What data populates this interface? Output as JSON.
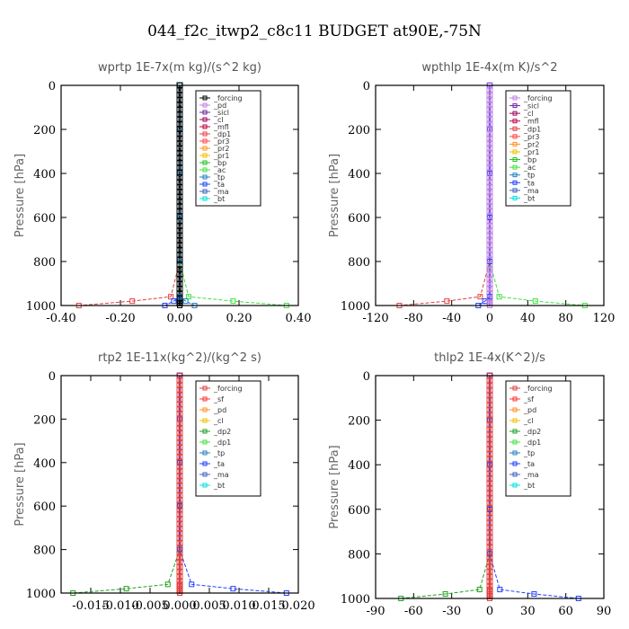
{
  "figure": {
    "title": "044_f2c_itwp2_c8c11  BUDGET at90E,-75N"
  },
  "chart_data": [
    {
      "type": "line",
      "title": "wprtp   1E-7x(m kg)/(s^2 kg)",
      "ylabel": "Pressure [hPa]",
      "xlim": [
        -0.4,
        0.4
      ],
      "ylim": [
        1000,
        0
      ],
      "xticks": [
        "-0.40",
        "-0.20",
        "0.00",
        "0.20",
        "0.40"
      ],
      "xtick_values": [
        -0.4,
        -0.2,
        0.0,
        0.2,
        0.4
      ],
      "yticks": [
        "0",
        "200",
        "400",
        "600",
        "800",
        "1000"
      ],
      "ytick_values": [
        0,
        200,
        400,
        600,
        800,
        1000
      ],
      "legend": [
        "_forcing",
        "_pd",
        "_sicl",
        "_cl",
        "_mfl",
        "_dp1",
        "_pr3",
        "_pr2",
        "_pr1",
        "_bp",
        "_ac",
        "_tp",
        "_ta",
        "_ma",
        "_bt"
      ],
      "legend_colors": [
        "#000000",
        "#c080e0",
        "#7020a0",
        "#a00060",
        "#c00040",
        "#e04040",
        "#ff4040",
        "#ff9020",
        "#f0c000",
        "#20c020",
        "#40e040",
        "#2080c0",
        "#2040ff",
        "#4060c0",
        "#00e0e0"
      ],
      "series": [
        {
          "name": "_forcing",
          "values": [
            0,
            0,
            0,
            0,
            0,
            0,
            0,
            0
          ]
        },
        {
          "name": "_dp1",
          "values": [
            0,
            0,
            0,
            0,
            0,
            -0.03,
            -0.16,
            -0.34
          ]
        },
        {
          "name": "_ac",
          "values": [
            0,
            0,
            0,
            0,
            0,
            0.03,
            0.18,
            0.36
          ]
        },
        {
          "name": "_ta",
          "values": [
            0,
            0,
            0,
            0,
            0,
            0,
            -0.02,
            -0.05
          ]
        },
        {
          "name": "_tp",
          "values": [
            0,
            0,
            0,
            0,
            0,
            0,
            0.02,
            0.05
          ]
        }
      ],
      "pressure": [
        0,
        200,
        400,
        600,
        800,
        960,
        980,
        1000
      ],
      "legend_position": "top-right"
    },
    {
      "type": "line",
      "title": "wpthlp   1E-4x(m K)/s^2",
      "ylabel": "Pressure [hPa]",
      "xlim": [
        -120,
        120
      ],
      "ylim": [
        1000,
        0
      ],
      "xticks": [
        "-120",
        "-80",
        "-40",
        "0",
        "40",
        "80",
        "120"
      ],
      "xtick_values": [
        -120,
        -80,
        -40,
        0,
        40,
        80,
        120
      ],
      "yticks": [
        "0",
        "200",
        "400",
        "600",
        "800",
        "1000"
      ],
      "ytick_values": [
        0,
        200,
        400,
        600,
        800,
        1000
      ],
      "legend": [
        "_forcing",
        "_sicl",
        "_cl",
        "_mfl",
        "_dp1",
        "_pr3",
        "_pr2",
        "_pr1",
        "_bp",
        "_ac",
        "_tp",
        "_ta",
        "_ma",
        "_bt"
      ],
      "legend_colors": [
        "#c080e0",
        "#7020a0",
        "#a00060",
        "#c00040",
        "#e04040",
        "#ff4040",
        "#ff9020",
        "#f0c000",
        "#20c020",
        "#40e040",
        "#2080c0",
        "#2040ff",
        "#4060c0",
        "#00e0e0"
      ],
      "series": [
        {
          "name": "_forcing",
          "values": [
            0,
            0,
            0,
            0,
            0,
            0,
            0,
            0
          ]
        },
        {
          "name": "_dp1",
          "values": [
            0,
            0,
            0,
            0,
            0,
            -10,
            -45,
            -95
          ]
        },
        {
          "name": "_ac",
          "values": [
            0,
            0,
            0,
            0,
            0,
            10,
            48,
            100
          ]
        },
        {
          "name": "_ta",
          "values": [
            0,
            0,
            0,
            0,
            0,
            0,
            -5,
            -12
          ]
        }
      ],
      "pressure": [
        0,
        200,
        400,
        600,
        800,
        960,
        980,
        1000
      ],
      "legend_position": "top-right"
    },
    {
      "type": "line",
      "title": "rtp2   1E-11x(kg^2)/(kg^2 s)",
      "ylabel": "Pressure [hPa]",
      "xlim": [
        -0.02,
        0.02
      ],
      "ylim": [
        1000,
        0
      ],
      "xticks": [
        "-0.015",
        "-0.010",
        "-0.005",
        "0.000",
        "0.005",
        "0.010",
        "0.015",
        "0.020"
      ],
      "xtick_values": [
        -0.015,
        -0.01,
        -0.005,
        0.0,
        0.005,
        0.01,
        0.015,
        0.02
      ],
      "yticks": [
        "0",
        "200",
        "400",
        "600",
        "800",
        "1000"
      ],
      "ytick_values": [
        0,
        200,
        400,
        600,
        800,
        1000
      ],
      "legend": [
        "_forcing",
        "_sf",
        "_pd",
        "_cl",
        "_dp2",
        "_dp1",
        "_tp",
        "_ta",
        "_ma",
        "_bt"
      ],
      "legend_colors": [
        "#e04040",
        "#ff3030",
        "#ff9020",
        "#f0c000",
        "#20a020",
        "#40e040",
        "#2080c0",
        "#2040ff",
        "#4060c0",
        "#00e0e0"
      ],
      "series": [
        {
          "name": "_forcing",
          "values": [
            0,
            0,
            0,
            0,
            0,
            0,
            0,
            0
          ]
        },
        {
          "name": "_dp2",
          "values": [
            0,
            0,
            0,
            0,
            0,
            -0.002,
            -0.009,
            -0.018
          ]
        },
        {
          "name": "_ta",
          "values": [
            0,
            0,
            0,
            0,
            0,
            0.002,
            0.009,
            0.018
          ]
        }
      ],
      "pressure": [
        0,
        200,
        400,
        600,
        800,
        960,
        980,
        1000
      ],
      "legend_position": "top-right"
    },
    {
      "type": "line",
      "title": "thlp2   1E-4x(K^2)/s",
      "ylabel": "Pressure [hPa]",
      "xlim": [
        -90,
        90
      ],
      "ylim": [
        1000,
        0
      ],
      "xticks": [
        "-90",
        "-60",
        "-30",
        "0",
        "30",
        "60",
        "90"
      ],
      "xtick_values": [
        -90,
        -60,
        -30,
        0,
        30,
        60,
        90
      ],
      "yticks": [
        "0",
        "200",
        "400",
        "600",
        "800",
        "1000"
      ],
      "ytick_values": [
        0,
        200,
        400,
        600,
        800,
        1000
      ],
      "legend": [
        "_forcing",
        "_sf",
        "_pd",
        "_cl",
        "_dp2",
        "_dp1",
        "_tp",
        "_ta",
        "_ma",
        "_bt"
      ],
      "legend_colors": [
        "#e04040",
        "#ff3030",
        "#ff9020",
        "#f0c000",
        "#20a020",
        "#40e040",
        "#2080c0",
        "#2040ff",
        "#4060c0",
        "#00e0e0"
      ],
      "series": [
        {
          "name": "_forcing",
          "values": [
            0,
            0,
            0,
            0,
            0,
            0,
            0,
            0
          ]
        },
        {
          "name": "_dp2",
          "values": [
            0,
            0,
            0,
            0,
            0,
            -8,
            -35,
            -70
          ]
        },
        {
          "name": "_ta",
          "values": [
            0,
            0,
            0,
            0,
            0,
            8,
            35,
            70
          ]
        }
      ],
      "pressure": [
        0,
        200,
        400,
        600,
        800,
        960,
        980,
        1000
      ],
      "legend_position": "top-right"
    }
  ]
}
